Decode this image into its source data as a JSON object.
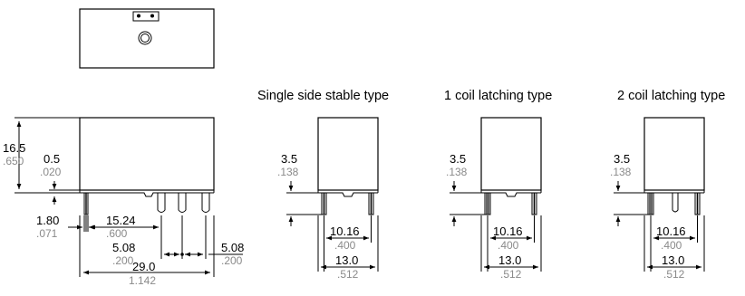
{
  "top_view": {
    "name": "top-view"
  },
  "front_view": {
    "dims": {
      "height": "16.5",
      "height_in": ".650",
      "ledge": "0.5",
      "ledge_in": ".020",
      "pin_w": "1.80",
      "pin_w_in": ".071",
      "pitch_a": "15.24",
      "pitch_a_in": ".600",
      "pitch_b": "5.08",
      "pitch_b_in": ".200",
      "pitch_c": "5.08",
      "pitch_c_in": ".200",
      "length": "29.0",
      "length_in": "1.142"
    }
  },
  "types": [
    {
      "title": "Single side stable type",
      "pin": "3.5",
      "pin_in": ".138",
      "spacing": "10.16",
      "spacing_in": ".400",
      "width": "13.0",
      "width_in": ".512"
    },
    {
      "title": "1 coil latching type",
      "pin": "3.5",
      "pin_in": ".138",
      "spacing": "10.16",
      "spacing_in": ".400",
      "width": "13.0",
      "width_in": ".512"
    },
    {
      "title": "2 coil latching type",
      "pin": "3.5",
      "pin_in": ".138",
      "spacing": "10.16",
      "spacing_in": ".400",
      "width": "13.0",
      "width_in": ".512"
    }
  ]
}
